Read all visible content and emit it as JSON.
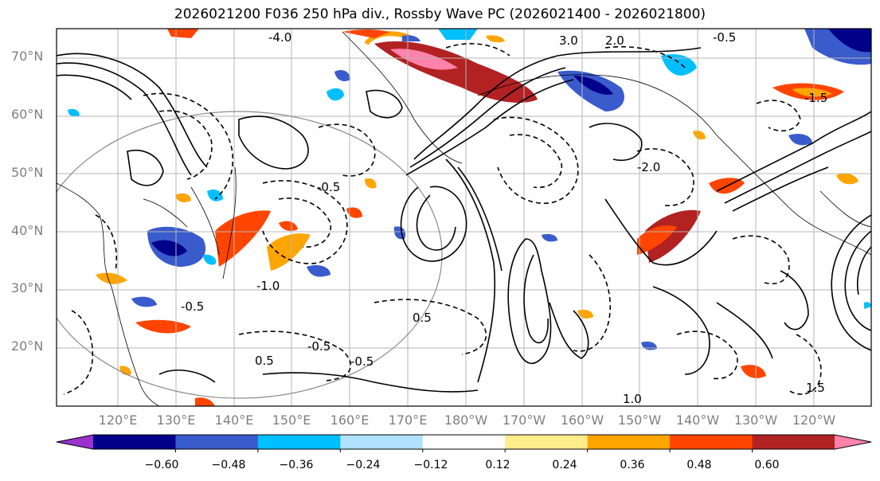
{
  "title": "2026021200 F036 250 hPa div., Rossby Wave PC (2026021400 - 2026021800)",
  "lat_labels": [
    "70°N",
    "60°N",
    "50°N",
    "40°N",
    "30°N",
    "20°N"
  ],
  "lon_labels": [
    "120°E",
    "130°E",
    "140°E",
    "150°E",
    "160°E",
    "170°E",
    "180°W",
    "170°W",
    "160°W",
    "150°W",
    "140°W",
    "130°W",
    "120°W"
  ],
  "contour_labels": [
    "3.0",
    "2.0",
    "-0.5",
    "-0.5",
    "-1.0",
    "-0.5",
    "-0.5",
    "1.0",
    "-2.0",
    "-1.5",
    "-4.0",
    "0.5",
    "-0.5",
    "1.5",
    "0.5"
  ],
  "colorbar": {
    "colors": [
      "#9932cc",
      "#00008b",
      "#3a5bcc",
      "#00bfff",
      "#b0e2ff",
      "#ffffff",
      "#ffec8b",
      "#ffa500",
      "#ff4500",
      "#b22222",
      "#ff82ab"
    ],
    "tick_labels": [
      "−0.60",
      "−0.48",
      "−0.36",
      "−0.24",
      "−0.12",
      "0.12",
      "0.24",
      "0.36",
      "0.48",
      "0.60"
    ]
  },
  "colors": {
    "frame": "#000000",
    "grid": "#b5b5b5",
    "axis_text": "#7f7f7f"
  }
}
